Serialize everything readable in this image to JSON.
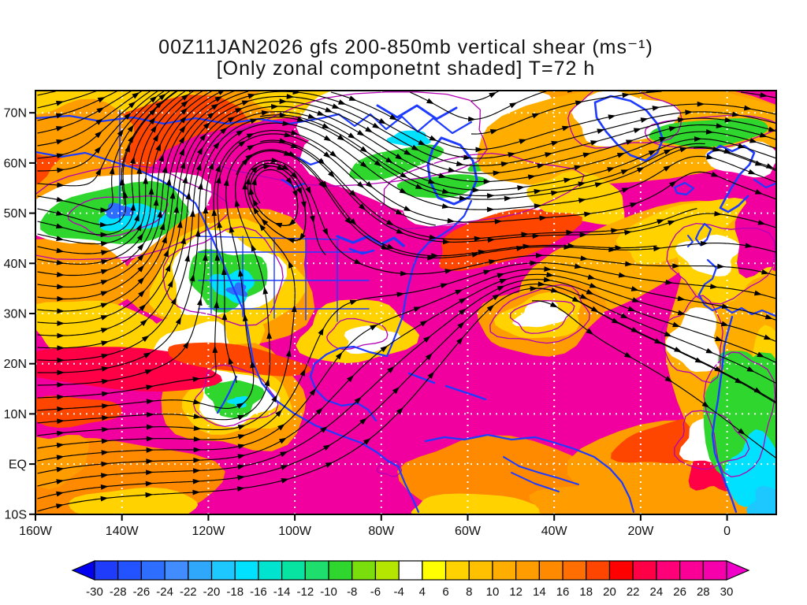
{
  "title": {
    "line1": "00Z11JAN2026 gfs 200-850mb vertical shear (ms⁻¹)",
    "line2": "[Only zonal componetnt shaded] T=72 h"
  },
  "map": {
    "y_ticks": [
      "70N",
      "60N",
      "50N",
      "40N",
      "30N",
      "20N",
      "10N",
      "EQ",
      "10S"
    ],
    "x_ticks": [
      "160W",
      "140W",
      "120W",
      "100W",
      "80W",
      "60W",
      "40W",
      "20W",
      "0"
    ]
  },
  "chart_data": {
    "type": "streamline_shaded_map",
    "title": "00Z11JAN2026 gfs 200-850mb vertical shear (ms⁻¹)",
    "subtitle": "[Only zonal componetnt shaded] T=72 h",
    "model": "gfs",
    "valid_time": "00Z11JAN2026",
    "forecast_hour_label": "T=72 h",
    "field": "200-850mb vertical shear",
    "units": "ms⁻¹",
    "shaded_variable": "zonal component of vertical shear",
    "lat_values": [
      70,
      60,
      50,
      40,
      30,
      20,
      10,
      0,
      -10
    ],
    "lon_values": [
      -160,
      -140,
      -120,
      -100,
      -80,
      -60,
      -40,
      -20,
      0
    ],
    "lat_axis_labels": [
      "70N",
      "60N",
      "50N",
      "40N",
      "30N",
      "20N",
      "10N",
      "EQ",
      "10S"
    ],
    "lon_axis_labels": [
      "160W",
      "140W",
      "120W",
      "100W",
      "80W",
      "60W",
      "40W",
      "20W",
      "0"
    ],
    "lon_range_deg": [
      -160,
      11
    ],
    "lat_range_deg": [
      -10,
      74.4
    ],
    "graticule": "white dotted lines every 10 degrees",
    "overlays": [
      "black streamlines with arrowheads",
      "blue coastlines and borders",
      "magenta thin contours"
    ],
    "colorbar": {
      "levels": [
        -30,
        -28,
        -26,
        -24,
        -22,
        -20,
        -18,
        -16,
        -14,
        -12,
        -10,
        -8,
        -6,
        -4,
        4,
        6,
        8,
        10,
        12,
        14,
        16,
        18,
        20,
        22,
        24,
        26,
        28,
        30
      ],
      "colors": [
        "#0202f0",
        "#1e3cfa",
        "#2353ff",
        "#2d6eff",
        "#418cff",
        "#2fa8fb",
        "#1cc8ff",
        "#00e1ff",
        "#00e4cf",
        "#07e3a1",
        "#1ede6e",
        "#2ed62e",
        "#7ade0c",
        "#b4e600",
        "#ffffff",
        "#ffff00",
        "#ffd200",
        "#ffc000",
        "#ffae00",
        "#ff9c00",
        "#ff8a00",
        "#ff6e00",
        "#ff4600",
        "#ff0000",
        "#ff0046",
        "#ff0078",
        "#fa0096",
        "#f500aa",
        "#f000c8"
      ],
      "base_shade_above_max": "#f2009f"
    },
    "features": [
      "Widespread westerly shear above 30 ms⁻¹ (magenta) over the subtropical Pacific and Atlantic",
      "Negative/easterly zonal shear pocket (green-cyan-blue) in the Gulf of Alaska near 52N 148W",
      "Negative zonal shear pocket (green-cyan) over the Four Corners / Colorado region near 38N 108W",
      "Negative pocket (green) just west of Mexico near 21N 107W",
      "Weak-shear white band with green streaks across Hudson Bay and northern Canada",
      "Green-cyan easterly shear over West Africa and the Gulf of Guinea at the right edge",
      "Anticyclonic streamline dome over British Columbia and a closed eddy near 30N 43W",
      "Orange/yellow bands along the Arctic coast, North Atlantic and Europe"
    ]
  }
}
